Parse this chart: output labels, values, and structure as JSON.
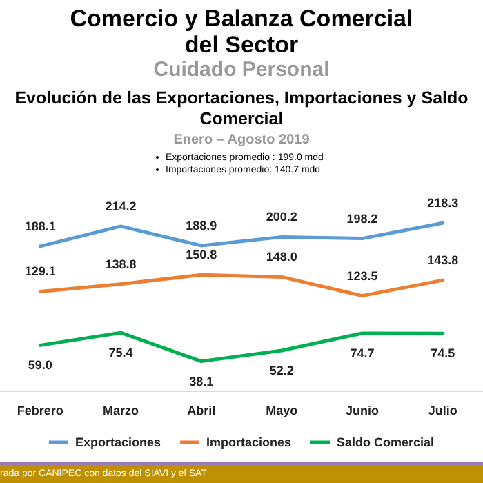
{
  "chart_data": {
    "type": "line",
    "title": "Comercio y Balanza Comercial del Sector",
    "subtitle": "Cuidado Personal",
    "annotations": [
      "Evolución de las Exportaciones, Importaciones y Saldo Comercial",
      "Enero – Agosto 2019",
      "Exportaciones promedio :  199.0 mdd",
      "Importaciones promedio:  140.7 mdd",
      "rada por CANIPEC con datos del SIAVI y el SAT"
    ],
    "categories": [
      "Febrero",
      "Marzo",
      "Abril",
      "Mayo",
      "Junio",
      "Julio"
    ],
    "series": [
      {
        "name": "Exportaciones",
        "color": "#5b9bd5",
        "values": [
          188.1,
          214.2,
          188.9,
          200.2,
          198.2,
          218.3
        ],
        "value_labels": [
          "188.1",
          "214.2",
          "188.9",
          "200.2",
          "198.2",
          "218.3"
        ]
      },
      {
        "name": "Importaciones",
        "color": "#ed7d31",
        "values": [
          129.1,
          138.8,
          150.8,
          148.0,
          123.5,
          143.8
        ],
        "value_labels": [
          "129.1",
          "138.8",
          "150.8",
          "148.0",
          "123.5",
          "143.8"
        ]
      },
      {
        "name": "Saldo Comercial",
        "color": "#00b050",
        "values": [
          59.0,
          75.4,
          38.1,
          52.2,
          74.7,
          74.5
        ],
        "value_labels": [
          "59.0",
          "75.4",
          "38.1",
          "52.2",
          "74.7",
          "74.5"
        ]
      }
    ],
    "legend": "bottom",
    "marker": "none"
  }
}
